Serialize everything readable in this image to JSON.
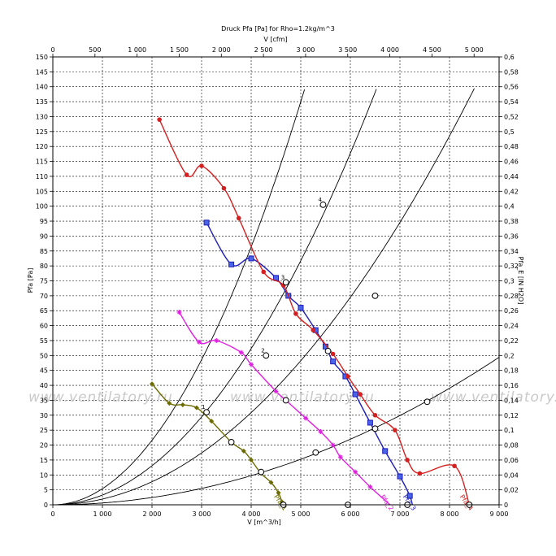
{
  "chart_data": {
    "type": "line",
    "title": "Druck Pfa [Pa] for Rho=1.2kg/m^3",
    "xlabel": "V [m^3/h]",
    "ylabel": "Pfa [Pa]",
    "x2label": "V [cfm]",
    "y2label": "Pfa_E [IN H2O]",
    "xlim": [
      0,
      9000
    ],
    "ylim": [
      0,
      150
    ],
    "x2lim": [
      0,
      5297
    ],
    "y2lim": [
      0,
      0.6
    ],
    "grid": true,
    "xticks": [
      "0",
      "1 000",
      "2 000",
      "3 000",
      "4 000",
      "5 000",
      "6 000",
      "7 000",
      "8 000",
      "9 000"
    ],
    "yticks": [
      "0",
      "5",
      "10",
      "15",
      "20",
      "25",
      "30",
      "35",
      "40",
      "45",
      "50",
      "55",
      "60",
      "65",
      "70",
      "75",
      "80",
      "85",
      "90",
      "95",
      "100",
      "105",
      "110",
      "115",
      "120",
      "125",
      "130",
      "135",
      "140",
      "145",
      "150"
    ],
    "x2ticks": [
      "0",
      "500",
      "1 000",
      "1 500",
      "2 000",
      "2 500",
      "3 000",
      "3 500",
      "4 000",
      "4 500",
      "5 000"
    ],
    "y2ticks": [
      "0",
      "0,02",
      "0,04",
      "0,06",
      "0,08",
      "0,1",
      "0,12",
      "0,14",
      "0,16",
      "0,18",
      "0,2",
      "0,22",
      "0,24",
      "0,26",
      "0,28",
      "0,3",
      "0,32",
      "0,34",
      "0,36",
      "0,38",
      "0,4",
      "0,42",
      "0,44",
      "0,46",
      "0,48",
      "0,5",
      "0,52",
      "0,54",
      "0,56",
      "0,58",
      "0,6"
    ],
    "series": [
      {
        "label": "Pfa_1",
        "color": "#6b6b00",
        "marker": "diamond",
        "points": [
          [
            2000,
            40.5
          ],
          [
            2350,
            34
          ],
          [
            2620,
            33.5
          ],
          [
            2900,
            32.5
          ],
          [
            3200,
            28
          ],
          [
            3600,
            21
          ],
          [
            3850,
            18
          ],
          [
            4000,
            15
          ],
          [
            4200,
            10.5
          ],
          [
            4400,
            7.5
          ],
          [
            4550,
            4
          ],
          [
            4620,
            1
          ],
          [
            4650,
            0
          ]
        ]
      },
      {
        "label": "Pfa_2",
        "color": "#e020e0",
        "marker": "star",
        "points": [
          [
            2550,
            64.5
          ],
          [
            2950,
            54.5
          ],
          [
            3300,
            55
          ],
          [
            3800,
            51
          ],
          [
            4000,
            47
          ],
          [
            4500,
            38
          ],
          [
            4700,
            35
          ],
          [
            5100,
            29
          ],
          [
            5400,
            24.5
          ],
          [
            5650,
            20
          ],
          [
            5800,
            16
          ],
          [
            6100,
            11
          ],
          [
            6400,
            6
          ],
          [
            6800,
            0
          ]
        ]
      },
      {
        "label": "Pfa_3",
        "color": "#1e1eb8",
        "marker": "square",
        "points": [
          [
            3100,
            94.5
          ],
          [
            3600,
            80.5
          ],
          [
            4000,
            82.5
          ],
          [
            4500,
            76
          ],
          [
            4750,
            70
          ],
          [
            5000,
            66
          ],
          [
            5300,
            58.5
          ],
          [
            5500,
            53
          ],
          [
            5650,
            48
          ],
          [
            5900,
            43
          ],
          [
            6100,
            37
          ],
          [
            6400,
            27.5
          ],
          [
            6700,
            18
          ],
          [
            7000,
            9.5
          ],
          [
            7200,
            3
          ],
          [
            7250,
            0
          ]
        ]
      },
      {
        "label": "Pfa_4",
        "color": "#d42020",
        "marker": "circle",
        "points": [
          [
            2150,
            129
          ],
          [
            2700,
            110.5
          ],
          [
            3000,
            113.5
          ],
          [
            3450,
            106
          ],
          [
            3750,
            96
          ],
          [
            4250,
            78
          ],
          [
            4650,
            73.5
          ],
          [
            4900,
            64
          ],
          [
            5250,
            58.5
          ],
          [
            5650,
            50.5
          ],
          [
            5950,
            43
          ],
          [
            6200,
            37
          ],
          [
            6500,
            30
          ],
          [
            6900,
            25
          ],
          [
            7150,
            15
          ],
          [
            7400,
            10.5
          ],
          [
            8100,
            13
          ],
          [
            8400,
            0
          ]
        ]
      }
    ],
    "system_curves": [
      {
        "label": "1",
        "k": 5.4e-06
      },
      {
        "label": "2",
        "k": 3.27e-06
      },
      {
        "label": "3",
        "k": 1.93e-06
      },
      {
        "label": "4",
        "k": 6.1e-07
      }
    ],
    "operating_points": [
      {
        "x": 3100,
        "y": 31,
        "label": "1"
      },
      {
        "x": 4300,
        "y": 50,
        "label": "2"
      },
      {
        "x": 4700,
        "y": 74.5,
        "label": "3"
      },
      {
        "x": 5450,
        "y": 100.5,
        "label": "4"
      },
      {
        "x": 3600,
        "y": 21
      },
      {
        "x": 4700,
        "y": 35
      },
      {
        "x": 5550,
        "y": 51.5
      },
      {
        "x": 6500,
        "y": 70
      },
      {
        "x": 4200,
        "y": 11
      },
      {
        "x": 5300,
        "y": 17.5
      },
      {
        "x": 6500,
        "y": 25.5
      },
      {
        "x": 7550,
        "y": 34.5
      },
      {
        "x": 4650,
        "y": 0
      },
      {
        "x": 5950,
        "y": 0
      },
      {
        "x": 7150,
        "y": 0
      },
      {
        "x": 8400,
        "y": 0
      }
    ],
    "watermark": "www.ventilatory.ru"
  }
}
